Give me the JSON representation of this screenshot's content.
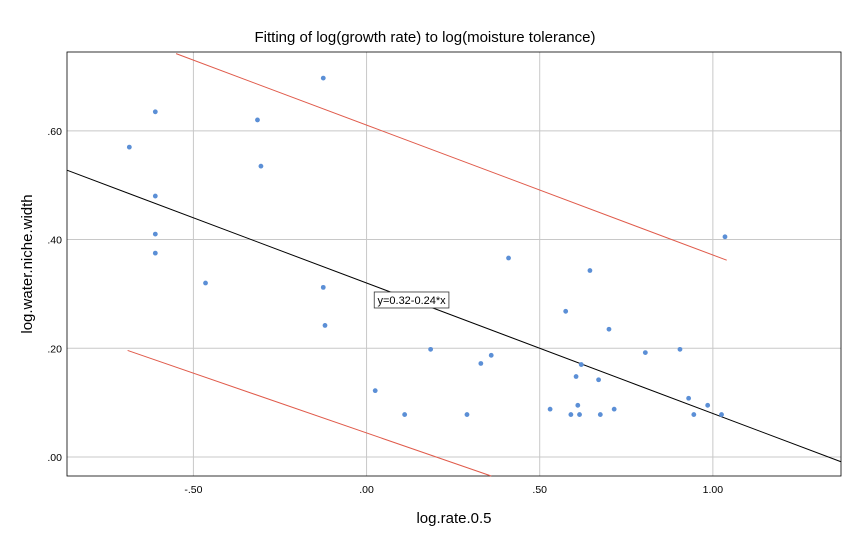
{
  "chart_data": {
    "type": "scatter",
    "title": "Fitting of log(growth rate) to log(moisture tolerance)",
    "xlabel": "log.rate.0.5",
    "ylabel": "log.water.niche.width",
    "xlim": [
      -0.865,
      1.37
    ],
    "ylim": [
      -0.035,
      0.745
    ],
    "x_ticks": [
      {
        "value": -0.5,
        "label": "-.50"
      },
      {
        "value": 0.0,
        "label": ".00"
      },
      {
        "value": 0.5,
        "label": ".50"
      },
      {
        "value": 1.0,
        "label": "1.00"
      }
    ],
    "y_ticks": [
      {
        "value": 0.0,
        "label": ".00"
      },
      {
        "value": 0.2,
        "label": ".20"
      },
      {
        "value": 0.4,
        "label": ".40"
      },
      {
        "value": 0.6,
        "label": ".60"
      }
    ],
    "grid": true,
    "point_color": "#5b8fd6",
    "fit_line": {
      "intercept": 0.32,
      "slope": -0.24,
      "equation": "y=0.32-0.24*x",
      "color": "#000000",
      "label_x": 0.13
    },
    "prediction_interval": {
      "color": "#e05a4a",
      "upper": [
        [
          -0.55,
          0.742
        ],
        [
          1.04,
          0.362
        ]
      ],
      "lower": [
        [
          -0.69,
          0.196
        ],
        [
          0.36,
          -0.035
        ]
      ]
    },
    "points": [
      [
        -0.685,
        0.57
      ],
      [
        -0.61,
        0.635
      ],
      [
        -0.61,
        0.48
      ],
      [
        -0.61,
        0.41
      ],
      [
        -0.61,
        0.375
      ],
      [
        -0.465,
        0.32
      ],
      [
        -0.315,
        0.62
      ],
      [
        -0.305,
        0.535
      ],
      [
        -0.125,
        0.697
      ],
      [
        -0.125,
        0.312
      ],
      [
        -0.12,
        0.242
      ],
      [
        0.025,
        0.122
      ],
      [
        0.11,
        0.078
      ],
      [
        0.185,
        0.198
      ],
      [
        0.29,
        0.078
      ],
      [
        0.33,
        0.172
      ],
      [
        0.36,
        0.187
      ],
      [
        0.41,
        0.366
      ],
      [
        0.53,
        0.088
      ],
      [
        0.575,
        0.268
      ],
      [
        0.59,
        0.078
      ],
      [
        0.605,
        0.148
      ],
      [
        0.61,
        0.095
      ],
      [
        0.615,
        0.078
      ],
      [
        0.62,
        0.17
      ],
      [
        0.645,
        0.343
      ],
      [
        0.67,
        0.142
      ],
      [
        0.675,
        0.078
      ],
      [
        0.7,
        0.235
      ],
      [
        0.715,
        0.088
      ],
      [
        0.805,
        0.192
      ],
      [
        0.905,
        0.198
      ],
      [
        0.93,
        0.108
      ],
      [
        0.945,
        0.078
      ],
      [
        0.985,
        0.095
      ],
      [
        1.025,
        0.078
      ],
      [
        1.035,
        0.405
      ]
    ]
  }
}
